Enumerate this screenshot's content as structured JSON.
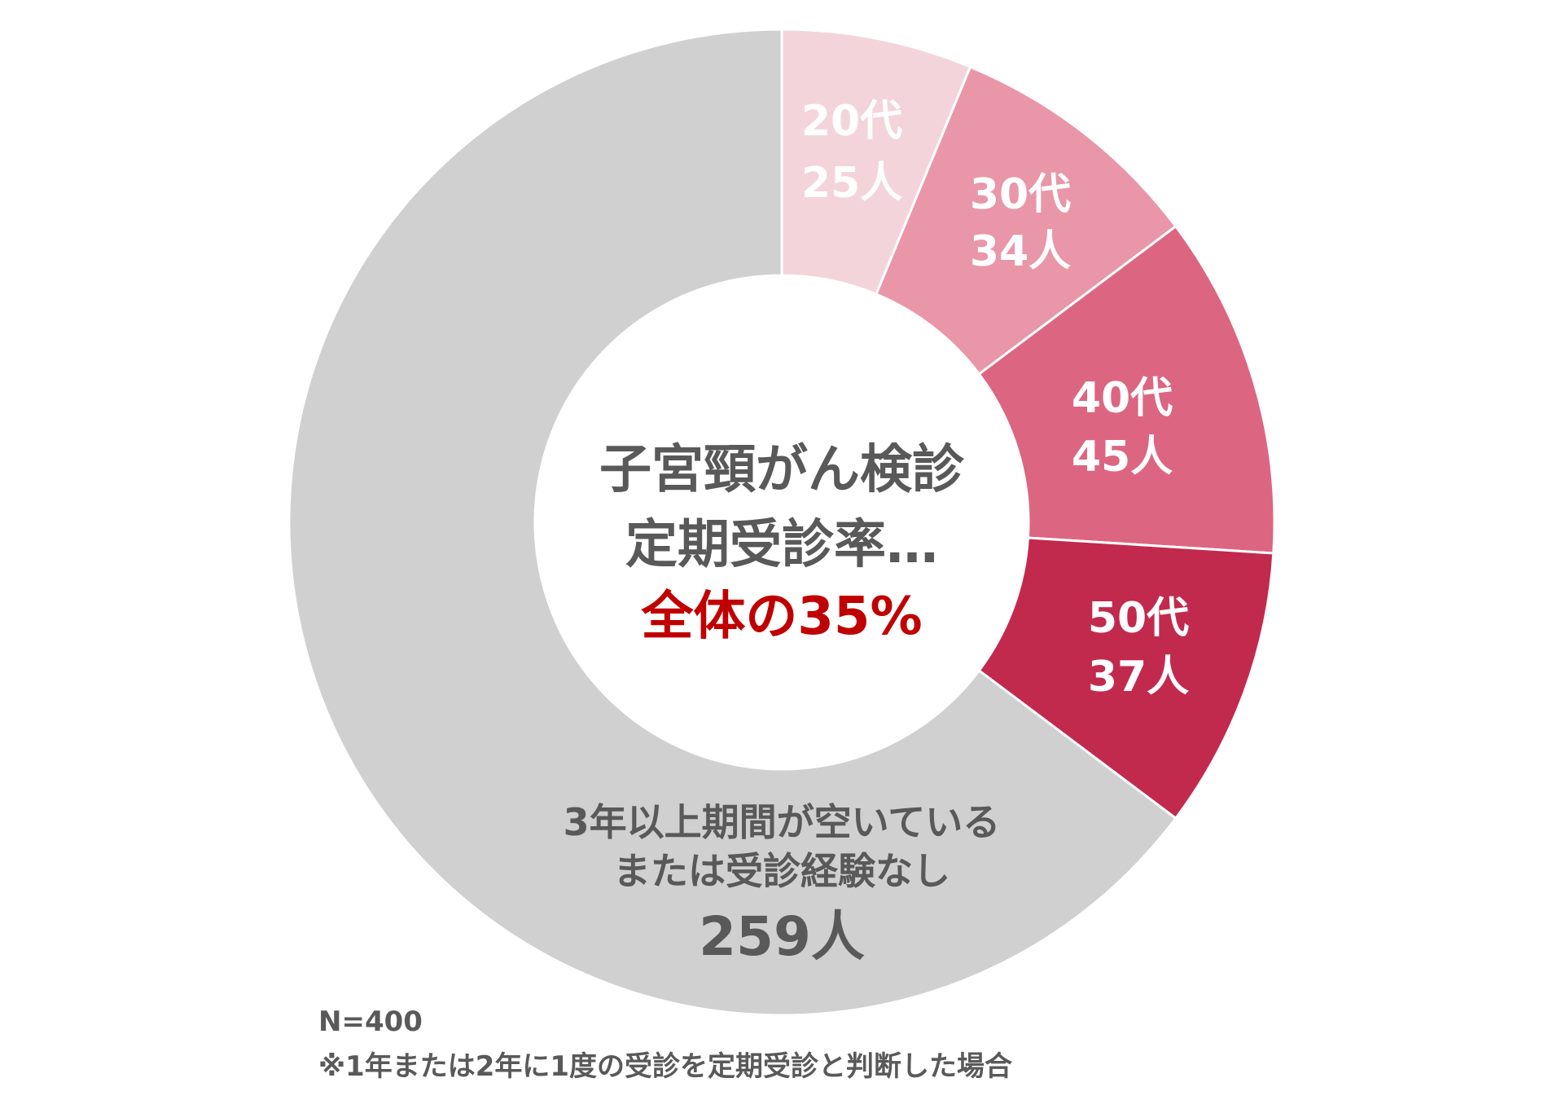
{
  "chart_data": {
    "type": "pie",
    "title": "",
    "center_lines": [
      "子宮頸がん検診",
      "定期受診率…"
    ],
    "center_highlight": "全体の35%",
    "slices": [
      {
        "category": "20代",
        "count_label": "25人",
        "value": 25,
        "color": "#f4d4db"
      },
      {
        "category": "30代",
        "count_label": "34人",
        "value": 34,
        "color": "#e996a9"
      },
      {
        "category": "40代",
        "count_label": "45人",
        "value": 45,
        "color": "#dc6681"
      },
      {
        "category": "50代",
        "count_label": "37人",
        "value": 37,
        "color": "#c22a4d"
      },
      {
        "category_lines": [
          "3年以上期間が空いている",
          "または受診経験なし"
        ],
        "count_label": "259人",
        "value": 259,
        "color": "#d0d0d0"
      }
    ],
    "footnotes": [
      "N=400",
      "※1年または2年に1度の受診を定期受診と判断した場合"
    ]
  }
}
